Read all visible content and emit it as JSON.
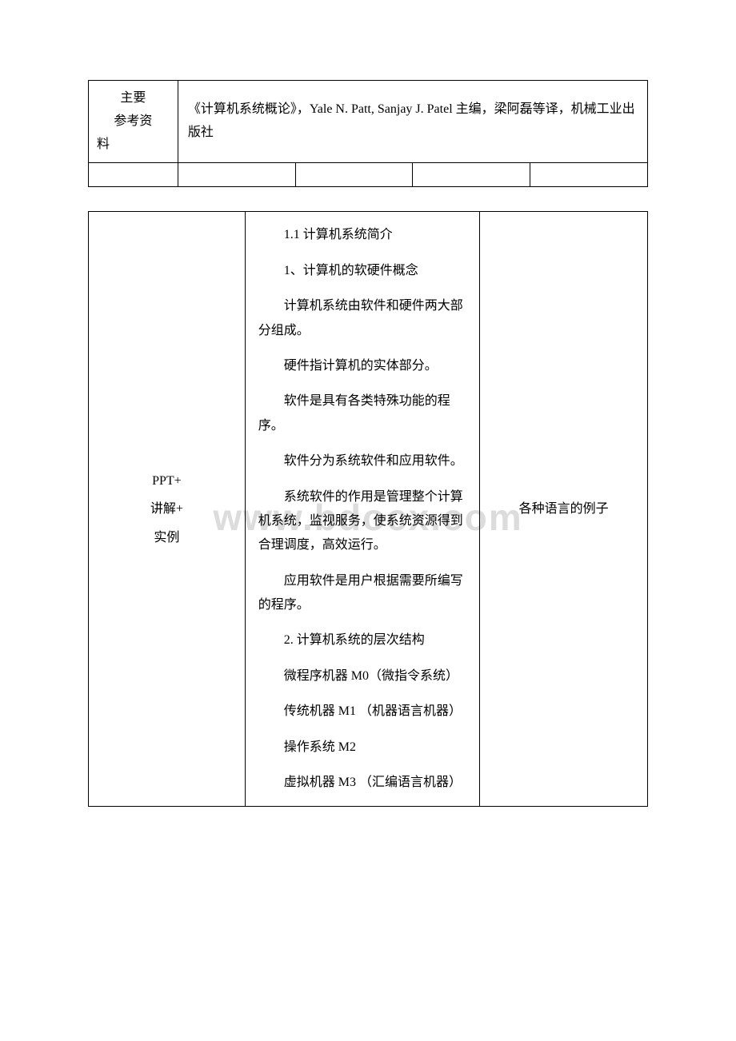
{
  "watermark": "www.bdocx.com",
  "table1": {
    "label_line1": "主要",
    "label_line2": "参考资",
    "label_line3": "料",
    "content": "《计算机系统概论》，Yale N. Patt, Sanjay J. Patel 主编，梁阿磊等译，机械工业出版社"
  },
  "table2": {
    "col1_line1": "PPT+",
    "col1_line2": "讲解+",
    "col1_line3": "实例",
    "col3": "各种语言的例子",
    "paragraphs": [
      "1.1 计算机系统简介",
      "1、计算机的软硬件概念",
      "计算机系统由软件和硬件两大部分组成。",
      "硬件指计算机的实体部分。",
      "软件是具有各类特殊功能的程序。",
      "软件分为系统软件和应用软件。",
      "系统软件的作用是管理整个计算机系统，监视服务，使系统资源得到合理调度，高效运行。",
      "应用软件是用户根据需要所编写的程序。",
      "2. 计算机系统的层次结构",
      "微程序机器 M0（微指令系统）",
      "传统机器 M1 （机器语言机器）",
      "操作系统 M2",
      "虚拟机器 M3 （汇编语言机器）"
    ]
  }
}
